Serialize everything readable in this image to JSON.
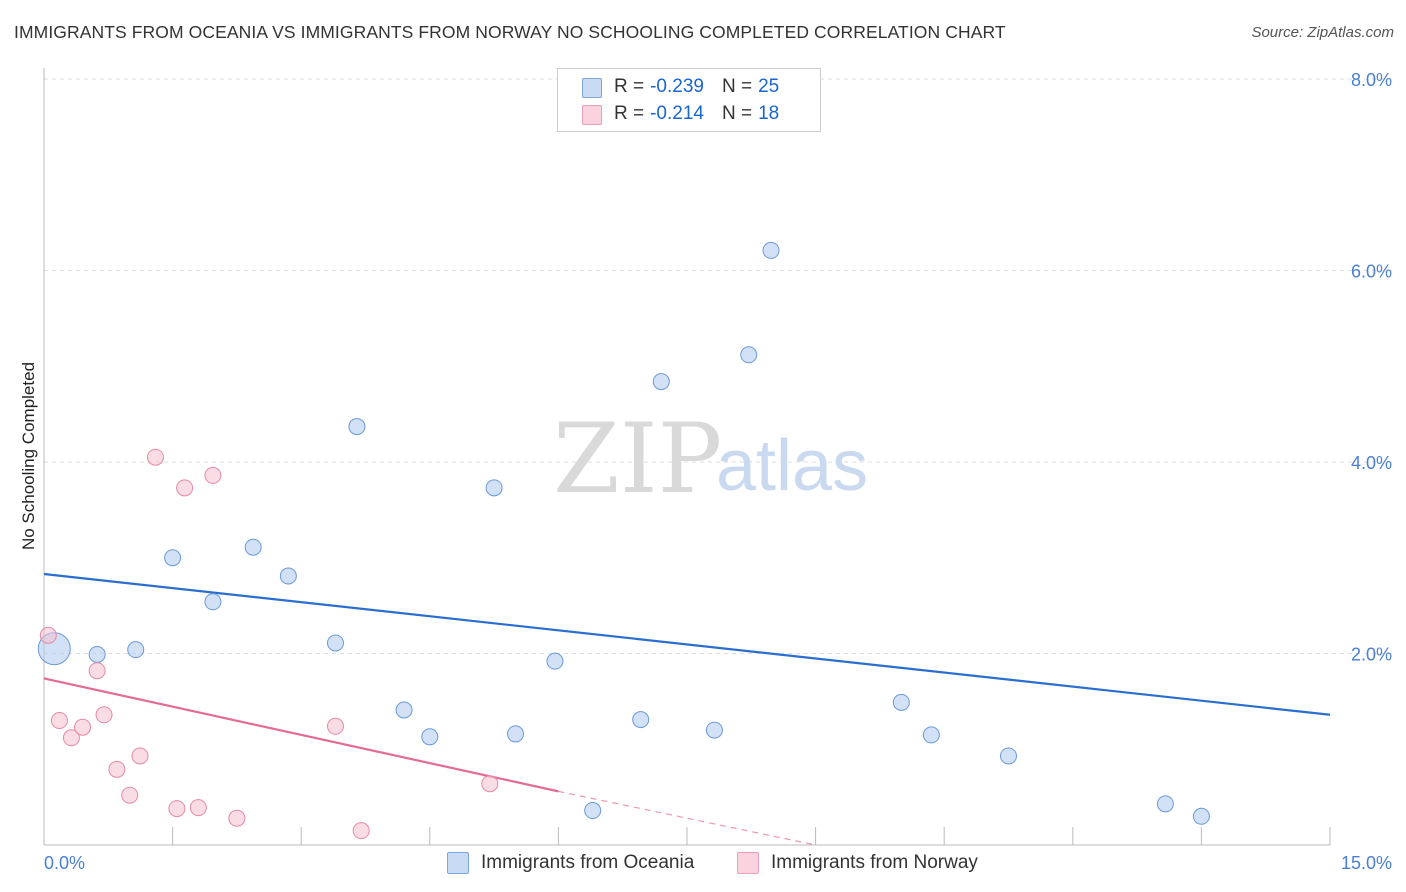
{
  "header": {
    "title": "IMMIGRANTS FROM OCEANIA VS IMMIGRANTS FROM NORWAY NO SCHOOLING COMPLETED CORRELATION CHART",
    "source": "Source: ZipAtlas.com"
  },
  "watermark": {
    "zip": "ZIP",
    "atlas": "atlas"
  },
  "stats": {
    "rows": [
      {
        "r_label": "R =",
        "r_value": "-0.239",
        "n_label": "N =",
        "n_value": "25",
        "color": "#aec9ee"
      },
      {
        "r_label": "R =",
        "r_value": "-0.214",
        "n_label": "N =",
        "n_value": "18",
        "color": "#f6bfd0"
      }
    ]
  },
  "legend": {
    "items": [
      {
        "label": "Immigrants from Oceania",
        "color": "#aec9ee"
      },
      {
        "label": "Immigrants from Norway",
        "color": "#f6bfd0"
      }
    ]
  },
  "chart_data": {
    "type": "scatter",
    "title": "IMMIGRANTS FROM OCEANIA VS IMMIGRANTS FROM NORWAY NO SCHOOLING COMPLETED CORRELATION CHART",
    "xlabel": "",
    "ylabel": "No Schooling Completed",
    "xlim": [
      0,
      15
    ],
    "ylim": [
      0,
      8
    ],
    "x_tick_labels": [
      "0.0%",
      "15.0%"
    ],
    "y_ticks": [
      2,
      4,
      6,
      8
    ],
    "y_tick_labels": [
      "2.0%",
      "4.0%",
      "6.0%",
      "8.0%"
    ],
    "grid": "horizontal dashed",
    "legend_position": "bottom-center",
    "series": [
      {
        "name": "Immigrants from Oceania",
        "color": "#aec9ee",
        "stroke": "#6a9ad8",
        "trend": {
          "x": [
            0,
            15
          ],
          "y": [
            2.83,
            1.36
          ],
          "color": "#2a6ed0"
        },
        "points": [
          {
            "x": 0.12,
            "y": 2.05,
            "big": true
          },
          {
            "x": 0.62,
            "y": 1.99
          },
          {
            "x": 1.07,
            "y": 2.04
          },
          {
            "x": 1.5,
            "y": 3.0
          },
          {
            "x": 1.97,
            "y": 2.54
          },
          {
            "x": 2.44,
            "y": 3.11
          },
          {
            "x": 2.85,
            "y": 2.81
          },
          {
            "x": 3.4,
            "y": 2.11
          },
          {
            "x": 3.65,
            "y": 4.37
          },
          {
            "x": 4.2,
            "y": 1.41
          },
          {
            "x": 4.5,
            "y": 1.13
          },
          {
            "x": 5.25,
            "y": 3.73
          },
          {
            "x": 5.5,
            "y": 1.16
          },
          {
            "x": 5.96,
            "y": 1.92
          },
          {
            "x": 6.4,
            "y": 0.36
          },
          {
            "x": 6.96,
            "y": 1.31
          },
          {
            "x": 7.2,
            "y": 4.84
          },
          {
            "x": 7.82,
            "y": 1.2
          },
          {
            "x": 8.22,
            "y": 5.12
          },
          {
            "x": 8.48,
            "y": 6.21
          },
          {
            "x": 10.0,
            "y": 1.49
          },
          {
            "x": 10.35,
            "y": 1.15
          },
          {
            "x": 11.25,
            "y": 0.93
          },
          {
            "x": 13.08,
            "y": 0.43
          },
          {
            "x": 13.5,
            "y": 0.3
          }
        ]
      },
      {
        "name": "Immigrants from Norway",
        "color": "#f6bfd0",
        "stroke": "#e58aa7",
        "trend": {
          "x": [
            0,
            6.0
          ],
          "y": [
            1.74,
            0.56
          ],
          "dashed_to": [
            9.0,
            0.0
          ],
          "color": "#e46b93"
        },
        "points": [
          {
            "x": 0.05,
            "y": 2.19
          },
          {
            "x": 0.18,
            "y": 1.3
          },
          {
            "x": 0.32,
            "y": 1.12
          },
          {
            "x": 0.45,
            "y": 1.23
          },
          {
            "x": 0.62,
            "y": 1.82
          },
          {
            "x": 0.7,
            "y": 1.36
          },
          {
            "x": 0.85,
            "y": 0.79
          },
          {
            "x": 1.0,
            "y": 0.52
          },
          {
            "x": 1.12,
            "y": 0.93
          },
          {
            "x": 1.3,
            "y": 4.05
          },
          {
            "x": 1.55,
            "y": 0.38
          },
          {
            "x": 1.64,
            "y": 3.73
          },
          {
            "x": 1.8,
            "y": 0.39
          },
          {
            "x": 1.97,
            "y": 3.86
          },
          {
            "x": 2.25,
            "y": 0.28
          },
          {
            "x": 3.4,
            "y": 1.24
          },
          {
            "x": 3.7,
            "y": 0.15
          },
          {
            "x": 5.2,
            "y": 0.64
          }
        ]
      }
    ]
  }
}
